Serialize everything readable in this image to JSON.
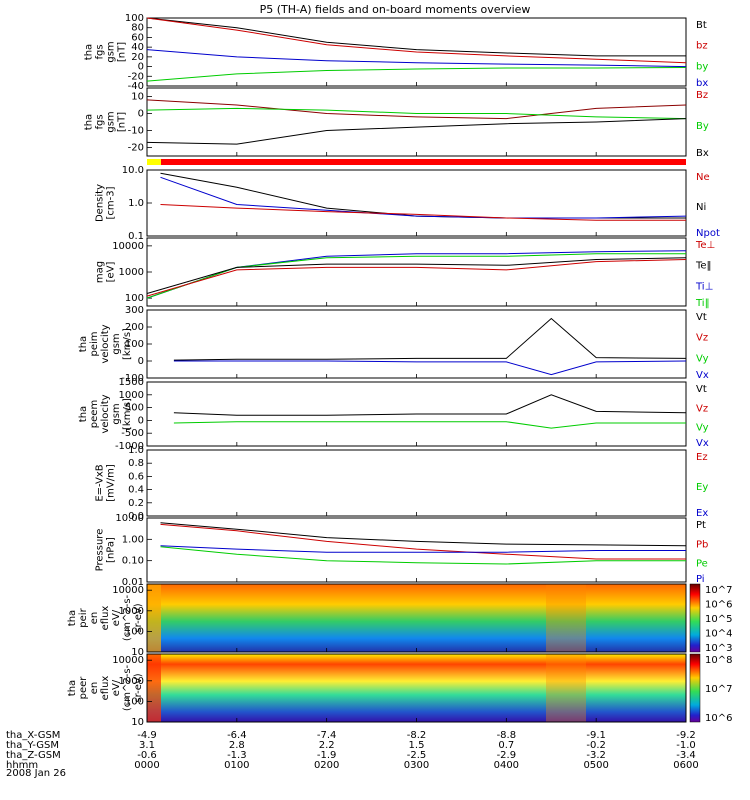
{
  "title": "P5 (TH-A) fields and on-board moments overview",
  "date_label": "2008 Jan 26",
  "chart_data": [
    {
      "type": "line",
      "ylabel": [
        "tha",
        "fgs",
        "gsm",
        "[nT]"
      ],
      "ylim": [
        -40,
        100
      ],
      "yticks": [
        "100",
        "80",
        "60",
        "40",
        "20",
        "0",
        "-20",
        "-40"
      ],
      "legend": [
        {
          "name": "Bt",
          "color": "#000000"
        },
        {
          "name": "bz",
          "color": "#cc0000"
        },
        {
          "name": "by",
          "color": "#00cc00"
        },
        {
          "name": "bx",
          "color": "#0000cc"
        }
      ],
      "series": [
        {
          "name": "Bt",
          "color": "#000000",
          "x": [
            0,
            0.1,
            0.2,
            0.3,
            0.4,
            0.5,
            0.6
          ],
          "values": [
            100,
            80,
            50,
            35,
            28,
            22,
            22
          ]
        },
        {
          "name": "bz",
          "color": "#cc0000",
          "x": [
            0,
            0.1,
            0.2,
            0.3,
            0.4,
            0.5,
            0.6
          ],
          "values": [
            100,
            75,
            45,
            30,
            22,
            15,
            8
          ]
        },
        {
          "name": "by",
          "color": "#00cc00",
          "x": [
            0,
            0.1,
            0.2,
            0.3,
            0.4,
            0.5,
            0.6
          ],
          "values": [
            -30,
            -15,
            -8,
            -5,
            -3,
            -3,
            -2
          ]
        },
        {
          "name": "bx",
          "color": "#0000cc",
          "x": [
            0,
            0.1,
            0.2,
            0.3,
            0.4,
            0.5,
            0.6
          ],
          "values": [
            35,
            20,
            12,
            8,
            5,
            3,
            0
          ]
        }
      ]
    },
    {
      "type": "line",
      "ylabel": [
        "tha",
        "fgs",
        "gsm",
        "[nT]"
      ],
      "ylim": [
        -25,
        15
      ],
      "yticks": [
        "10",
        "0",
        "-10",
        "-20"
      ],
      "legend": [
        {
          "name": "Bz",
          "color": "#cc0000"
        },
        {
          "name": "By",
          "color": "#00cc00"
        },
        {
          "name": "Bx",
          "color": "#000000"
        }
      ],
      "series": [
        {
          "name": "Bz",
          "color": "#8b0000",
          "x": [
            0,
            0.1,
            0.2,
            0.3,
            0.4,
            0.5,
            0.6
          ],
          "values": [
            8,
            5,
            0,
            -2,
            -3,
            3,
            5
          ]
        },
        {
          "name": "By",
          "color": "#00cc00",
          "x": [
            0,
            0.1,
            0.2,
            0.3,
            0.4,
            0.5,
            0.6
          ],
          "values": [
            2,
            3,
            2,
            0,
            0,
            -2,
            -3
          ]
        },
        {
          "name": "Bx",
          "color": "#000000",
          "x": [
            0,
            0.1,
            0.2,
            0.3,
            0.4,
            0.5,
            0.6
          ],
          "values": [
            -17,
            -18,
            -10,
            -8,
            -6,
            -5,
            -3
          ]
        }
      ]
    },
    {
      "type": "line",
      "yscale": "log",
      "ylabel": [
        "Density",
        "[cm-3]"
      ],
      "ylim": [
        0.1,
        10
      ],
      "yticks": [
        "10.0",
        "1.0",
        "0.1"
      ],
      "legend": [
        {
          "name": "Ne",
          "color": "#cc0000"
        },
        {
          "name": "Ni",
          "color": "#000000"
        },
        {
          "name": "Npot",
          "color": "#0000cc"
        }
      ],
      "series": [
        {
          "name": "Ni",
          "color": "#000000",
          "x": [
            0.015,
            0.1,
            0.2,
            0.3,
            0.4,
            0.5,
            0.6
          ],
          "values": [
            8,
            3,
            0.7,
            0.4,
            0.35,
            0.35,
            0.35
          ]
        },
        {
          "name": "Npot",
          "color": "#0000cc",
          "x": [
            0.015,
            0.1,
            0.2,
            0.3,
            0.4,
            0.5,
            0.6
          ],
          "values": [
            6,
            0.9,
            0.6,
            0.4,
            0.35,
            0.35,
            0.4
          ]
        },
        {
          "name": "Ne",
          "color": "#cc0000",
          "x": [
            0.015,
            0.1,
            0.2,
            0.3,
            0.4,
            0.5,
            0.6
          ],
          "values": [
            0.9,
            0.7,
            0.55,
            0.45,
            0.35,
            0.3,
            0.3
          ]
        }
      ]
    },
    {
      "type": "line",
      "yscale": "log",
      "ylabel": [
        "mag",
        "[eV]"
      ],
      "ylim": [
        50,
        20000
      ],
      "yticks": [
        "10000",
        "1000",
        "100"
      ],
      "legend": [
        {
          "name": "Te⊥",
          "color": "#cc0000"
        },
        {
          "name": "Te‖",
          "color": "#000000"
        },
        {
          "name": "Ti⊥",
          "color": "#0000cc"
        },
        {
          "name": "Ti‖",
          "color": "#00cc00"
        }
      ],
      "series": [
        {
          "name": "Ti⊥",
          "color": "#0000cc",
          "x": [
            0,
            0.1,
            0.2,
            0.3,
            0.4,
            0.5,
            0.6
          ],
          "values": [
            100,
            1500,
            4000,
            5000,
            5000,
            6000,
            6500
          ]
        },
        {
          "name": "Ti‖",
          "color": "#00cc00",
          "x": [
            0,
            0.1,
            0.2,
            0.3,
            0.4,
            0.5,
            0.6
          ],
          "values": [
            100,
            1500,
            3500,
            4000,
            4000,
            5000,
            5000
          ]
        },
        {
          "name": "Te‖",
          "color": "#000000",
          "x": [
            0,
            0.1,
            0.2,
            0.3,
            0.4,
            0.5,
            0.6
          ],
          "values": [
            150,
            1500,
            2000,
            2000,
            1800,
            3000,
            3500
          ]
        },
        {
          "name": "Te⊥",
          "color": "#cc0000",
          "x": [
            0,
            0.1,
            0.2,
            0.3,
            0.4,
            0.5,
            0.6
          ],
          "values": [
            120,
            1200,
            1500,
            1500,
            1200,
            2500,
            3000
          ]
        }
      ]
    },
    {
      "type": "line",
      "ylabel": [
        "tha",
        "peim",
        "velocity",
        "gsm",
        "[km/s]"
      ],
      "ylim": [
        -100,
        300
      ],
      "yticks": [
        "300",
        "200",
        "100",
        "0",
        "-100"
      ],
      "legend": [
        {
          "name": "Vt",
          "color": "#000000"
        },
        {
          "name": "Vz",
          "color": "#cc0000"
        },
        {
          "name": "Vy",
          "color": "#00cc00"
        },
        {
          "name": "Vx",
          "color": "#0000cc"
        }
      ],
      "series": [
        {
          "name": "Vt",
          "color": "#000000",
          "x": [
            0.03,
            0.1,
            0.2,
            0.3,
            0.4,
            0.45,
            0.5,
            0.6
          ],
          "values": [
            5,
            10,
            10,
            15,
            15,
            250,
            20,
            15
          ]
        },
        {
          "name": "Vx",
          "color": "#0000cc",
          "x": [
            0.03,
            0.1,
            0.2,
            0.3,
            0.4,
            0.45,
            0.5,
            0.6
          ],
          "values": [
            0,
            0,
            0,
            -5,
            -5,
            -80,
            -5,
            0
          ]
        }
      ]
    },
    {
      "type": "line",
      "ylabel": [
        "tha",
        "peem",
        "velocity",
        "gsm",
        "[km/s]"
      ],
      "ylim": [
        -1000,
        1500
      ],
      "yticks": [
        "1500",
        "1000",
        "500",
        "0",
        "-500",
        "-1000"
      ],
      "legend": [
        {
          "name": "Vt",
          "color": "#000000"
        },
        {
          "name": "Vz",
          "color": "#cc0000"
        },
        {
          "name": "Vy",
          "color": "#00cc00"
        },
        {
          "name": "Vx",
          "color": "#0000cc"
        }
      ],
      "series": [
        {
          "name": "Vt",
          "color": "#000000",
          "x": [
            0.03,
            0.1,
            0.2,
            0.3,
            0.4,
            0.45,
            0.5,
            0.6
          ],
          "values": [
            300,
            200,
            200,
            250,
            250,
            1000,
            350,
            300
          ]
        },
        {
          "name": "Vy",
          "color": "#00cc00",
          "x": [
            0.03,
            0.1,
            0.2,
            0.3,
            0.4,
            0.45,
            0.5,
            0.6
          ],
          "values": [
            -100,
            -50,
            -50,
            -50,
            -50,
            -300,
            -100,
            -100
          ]
        }
      ]
    },
    {
      "type": "line",
      "ylabel": [
        "E=-VxB",
        "[mV/m]"
      ],
      "ylim": [
        0,
        1
      ],
      "yticks": [
        "1.0",
        "0.8",
        "0.6",
        "0.4",
        "0.2",
        "0.0"
      ],
      "legend": [
        {
          "name": "Ez",
          "color": "#cc0000"
        },
        {
          "name": "Ey",
          "color": "#00cc00"
        },
        {
          "name": "Ex",
          "color": "#0000cc"
        }
      ],
      "series": []
    },
    {
      "type": "line",
      "yscale": "log",
      "ylabel": [
        "Pressure",
        "[nPa]"
      ],
      "ylim": [
        0.01,
        10
      ],
      "yticks": [
        "10.00",
        "1.00",
        "0.10",
        "0.01"
      ],
      "legend": [
        {
          "name": "Pt",
          "color": "#000000"
        },
        {
          "name": "Pb",
          "color": "#cc0000"
        },
        {
          "name": "Pe",
          "color": "#00cc00"
        },
        {
          "name": "Pi",
          "color": "#0000cc"
        }
      ],
      "series": [
        {
          "name": "Pt",
          "color": "#000000",
          "x": [
            0.015,
            0.1,
            0.2,
            0.3,
            0.4,
            0.5,
            0.6
          ],
          "values": [
            6,
            3,
            1.2,
            0.8,
            0.6,
            0.55,
            0.5
          ]
        },
        {
          "name": "Pb",
          "color": "#cc0000",
          "x": [
            0.015,
            0.1,
            0.2,
            0.3,
            0.4,
            0.5,
            0.6
          ],
          "values": [
            5,
            2.5,
            0.8,
            0.35,
            0.2,
            0.12,
            0.12
          ]
        },
        {
          "name": "Pi",
          "color": "#0000cc",
          "x": [
            0.015,
            0.1,
            0.2,
            0.3,
            0.4,
            0.5,
            0.6
          ],
          "values": [
            0.5,
            0.35,
            0.25,
            0.25,
            0.25,
            0.3,
            0.3
          ]
        },
        {
          "name": "Pe",
          "color": "#00cc00",
          "x": [
            0.015,
            0.1,
            0.2,
            0.3,
            0.4,
            0.5,
            0.6
          ],
          "values": [
            0.45,
            0.2,
            0.1,
            0.08,
            0.07,
            0.1,
            0.1
          ]
        }
      ]
    },
    {
      "type": "heatmap",
      "ylabel": [
        "tha",
        "peir",
        "en",
        "eflux",
        "eV/",
        "(cm^2-s-",
        "sr-eV)"
      ],
      "yscale": "log",
      "ylim": [
        10,
        20000
      ],
      "yticks": [
        "10000",
        "1000",
        "100",
        "10"
      ],
      "colorbar_labels": [
        "10^7",
        "10^6",
        "10^5",
        "10^4",
        "10^3"
      ]
    },
    {
      "type": "heatmap",
      "ylabel": [
        "tha",
        "peer",
        "en",
        "eflux",
        "eV/",
        "(cm^2-s-",
        "sr-eV)"
      ],
      "yscale": "log",
      "ylim": [
        10,
        20000
      ],
      "yticks": [
        "10000",
        "1000",
        "100",
        "10"
      ],
      "colorbar_labels": [
        "10^8",
        "10^7",
        "10^6"
      ]
    }
  ],
  "footer": {
    "rows": [
      {
        "label": "tha_X-GSM",
        "values": [
          "-4.9",
          "-6.4",
          "-7.4",
          "-8.2",
          "-8.8",
          "-9.1",
          "-9.2"
        ]
      },
      {
        "label": "tha_Y-GSM",
        "values": [
          "3.1",
          "2.8",
          "2.2",
          "1.5",
          "0.7",
          "-0.2",
          "-1.0"
        ]
      },
      {
        "label": "tha_Z-GSM",
        "values": [
          "-0.6",
          "-1.3",
          "-1.9",
          "-2.5",
          "-2.9",
          "-3.2",
          "-3.4"
        ]
      },
      {
        "label": "hhmm",
        "values": [
          "0000",
          "0100",
          "0200",
          "0300",
          "0400",
          "0500",
          "0600"
        ]
      }
    ]
  },
  "colors": {
    "mode_bar_yellow": "#ffff00",
    "mode_bar_red": "#ff0000"
  }
}
